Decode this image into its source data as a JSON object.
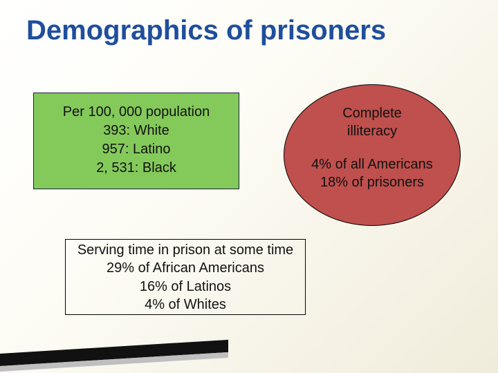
{
  "title": "Demographics of prisoners",
  "population": {
    "header": "Per 100, 000 population",
    "line1": "393:  White",
    "line2": "957:  Latino",
    "line3": "2, 531:  Black",
    "bg_color": "#84ca5b",
    "border_color": "#1a1a40"
  },
  "illiteracy": {
    "header1": "Complete",
    "header2": "illiteracy",
    "line1": "4% of all Americans",
    "line2": "18% of prisoners",
    "bg_color": "#bf504d"
  },
  "serving": {
    "header": "Serving time in prison at some time",
    "line1": "29% of African Americans",
    "line2": "16% of Latinos",
    "line3": "4% of Whites"
  },
  "colors": {
    "title": "#1f4e9c",
    "background_start": "#ffffff",
    "background_end": "#f0ecdb",
    "accent_dark": "#111111",
    "accent_light": "#bfbfbf"
  }
}
